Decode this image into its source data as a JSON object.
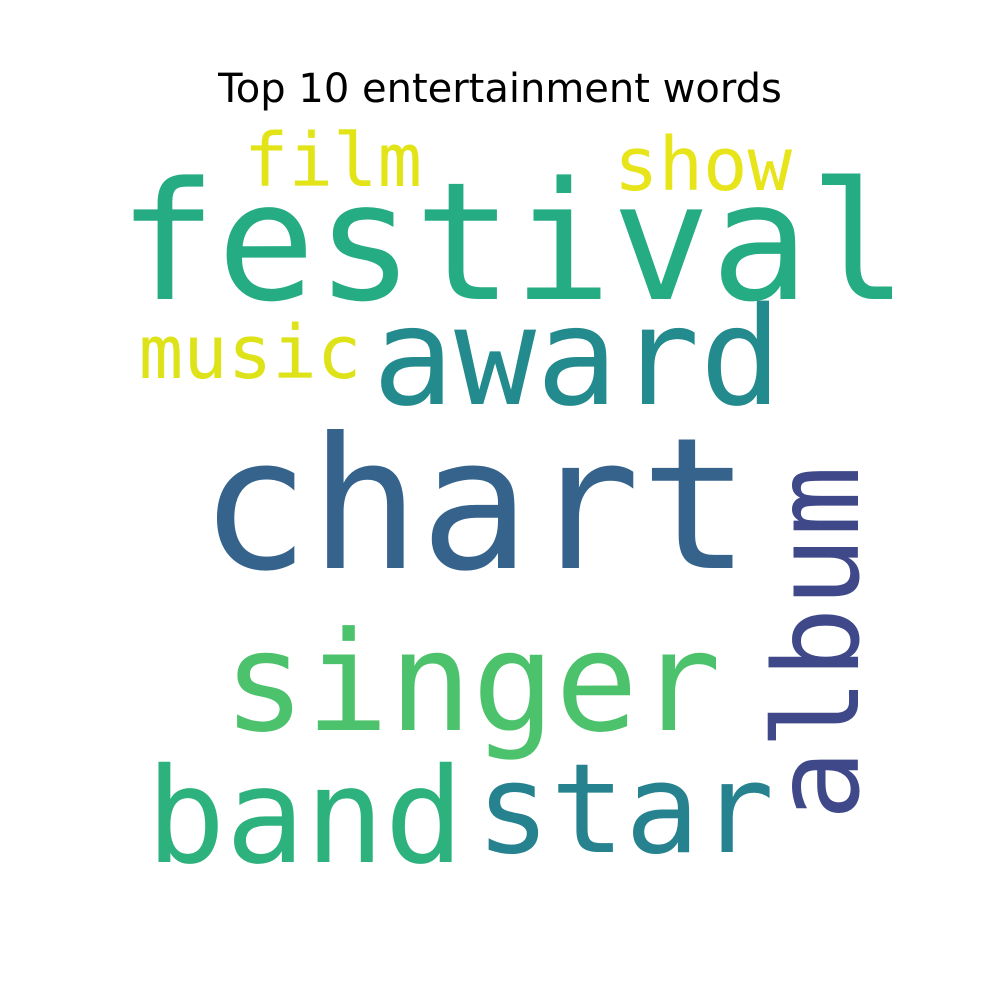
{
  "title": "Top 10 entertainment words",
  "chart_data": {
    "type": "wordcloud",
    "title": "Top 10 entertainment words",
    "words": [
      {
        "text": "chart",
        "color": "#35638c",
        "orientation": "horizontal"
      },
      {
        "text": "festival",
        "color": "#26ac83",
        "orientation": "horizontal"
      },
      {
        "text": "award",
        "color": "#238a8d",
        "orientation": "horizontal"
      },
      {
        "text": "singer",
        "color": "#4cc26c",
        "orientation": "horizontal"
      },
      {
        "text": "band",
        "color": "#2db27d",
        "orientation": "horizontal"
      },
      {
        "text": "star",
        "color": "#26828e",
        "orientation": "horizontal"
      },
      {
        "text": "album",
        "color": "#3f4889",
        "orientation": "vertical"
      },
      {
        "text": "film",
        "color": "#e2e418",
        "orientation": "horizontal"
      },
      {
        "text": "show",
        "color": "#e7e419",
        "orientation": "horizontal"
      },
      {
        "text": "music",
        "color": "#dde318",
        "orientation": "horizontal"
      }
    ]
  }
}
